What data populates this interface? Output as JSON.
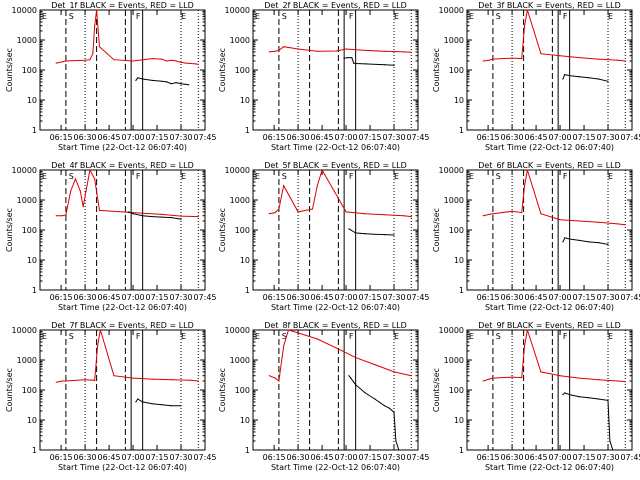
{
  "common": {
    "ylabel": "Counts/sec",
    "xlabel": "Start Time (22-Oct-12 06:07:40)",
    "xticks": [
      "06:15",
      "06:30",
      "06:45",
      "07:00",
      "07:15",
      "07:30",
      "07:45"
    ],
    "yticks": [
      "1",
      "10",
      "100",
      "1000",
      "10000"
    ],
    "marker_labels": [
      "E",
      "S",
      "F",
      "E"
    ],
    "colors": {
      "events": "#000000",
      "lld": "#dd0000",
      "axes": "#000000"
    }
  },
  "chart_data": [
    {
      "type": "line",
      "title": "Det_1f BLACK = Events, RED = LLD",
      "yscale": "log",
      "ylim": [
        1,
        10000
      ],
      "series": [
        {
          "x": [
            6.2,
            6.27,
            6.3,
            6.5,
            6.55,
            6.58,
            6.6,
            6.62,
            6.65,
            6.8,
            7.0,
            7.2,
            7.3,
            7.35,
            7.4,
            7.45,
            7.5,
            7.55,
            7.6,
            7.65,
            7.68
          ],
          "y": [
            170,
            190,
            200,
            210,
            220,
            350,
            3000,
            10000,
            600,
            220,
            200,
            240,
            230,
            200,
            210,
            200,
            180,
            170,
            165,
            160,
            155
          ]
        },
        {
          "x": [
            7.03,
            7.05,
            7.1,
            7.2,
            7.3,
            7.35,
            7.4,
            7.45,
            7.5,
            7.55,
            7.58
          ],
          "y": [
            45,
            55,
            50,
            45,
            42,
            40,
            35,
            38,
            35,
            33,
            32
          ]
        }
      ]
    },
    {
      "type": "line",
      "title": "Det_2f BLACK = Events, RED = LLD",
      "yscale": "log",
      "ylim": [
        1,
        10000
      ],
      "series": [
        {
          "x": [
            6.2,
            6.26,
            6.3,
            6.35,
            6.5,
            6.7,
            6.9,
            7.0,
            7.2,
            7.4,
            7.6,
            7.68
          ],
          "y": [
            400,
            420,
            450,
            600,
            500,
            420,
            430,
            500,
            450,
            420,
            400,
            390
          ]
        },
        {
          "x": [
            6.98,
            7.02,
            7.06,
            7.08,
            7.1,
            7.2,
            7.4,
            7.5
          ],
          "y": [
            250,
            260,
            260,
            170,
            165,
            160,
            150,
            145
          ]
        }
      ]
    },
    {
      "type": "line",
      "title": "Det_3f BLACK = Events, RED = LLD",
      "yscale": "log",
      "ylim": [
        1,
        10000
      ],
      "series": [
        {
          "x": [
            6.2,
            6.26,
            6.3,
            6.5,
            6.6,
            6.63,
            6.66,
            6.8,
            7.0,
            7.2,
            7.4,
            7.6,
            7.68
          ],
          "y": [
            200,
            210,
            230,
            250,
            240,
            3000,
            10000,
            350,
            300,
            260,
            230,
            210,
            200
          ]
        },
        {
          "x": [
            7.03,
            7.05,
            7.1,
            7.2,
            7.3,
            7.4,
            7.5
          ],
          "y": [
            50,
            70,
            65,
            60,
            55,
            50,
            42
          ]
        }
      ]
    },
    {
      "type": "line",
      "title": "Det_4f BLACK = Events, RED = LLD",
      "yscale": "log",
      "ylim": [
        1,
        10000
      ],
      "series": [
        {
          "x": [
            6.2,
            6.26,
            6.3,
            6.35,
            6.4,
            6.45,
            6.48,
            6.55,
            6.6,
            6.65,
            7.0,
            7.3,
            7.5,
            7.68
          ],
          "y": [
            300,
            300,
            320,
            2000,
            5000,
            2000,
            600,
            10000,
            5000,
            450,
            380,
            330,
            290,
            280
          ]
        },
        {
          "x": [
            6.95,
            7.0,
            7.1,
            7.2,
            7.3,
            7.4,
            7.5
          ],
          "y": [
            400,
            350,
            300,
            280,
            270,
            260,
            230
          ]
        }
      ]
    },
    {
      "type": "line",
      "title": "Det_5f BLACK = Events, RED = LLD",
      "yscale": "log",
      "ylim": [
        1,
        10000
      ],
      "series": [
        {
          "x": [
            6.2,
            6.26,
            6.3,
            6.35,
            6.5,
            6.65,
            6.7,
            6.75,
            7.0,
            7.2,
            7.4,
            7.6,
            7.68
          ],
          "y": [
            350,
            380,
            500,
            3000,
            400,
            500,
            3000,
            10000,
            400,
            350,
            320,
            300,
            280
          ]
        },
        {
          "x": [
            7.03,
            7.05,
            7.1,
            7.2,
            7.3,
            7.4,
            7.5
          ],
          "y": [
            110,
            100,
            80,
            75,
            72,
            70,
            68
          ]
        }
      ]
    },
    {
      "type": "line",
      "title": "Det_6f BLACK = Events, RED = LLD",
      "yscale": "log",
      "ylim": [
        1,
        10000
      ],
      "series": [
        {
          "x": [
            6.2,
            6.26,
            6.3,
            6.5,
            6.6,
            6.63,
            6.66,
            6.8,
            7.0,
            7.2,
            7.4,
            7.6,
            7.68
          ],
          "y": [
            300,
            330,
            350,
            420,
            380,
            3000,
            10000,
            350,
            220,
            200,
            180,
            160,
            150
          ]
        },
        {
          "x": [
            7.03,
            7.05,
            7.1,
            7.2,
            7.3,
            7.4,
            7.5
          ],
          "y": [
            40,
            55,
            50,
            45,
            40,
            38,
            33
          ]
        }
      ]
    },
    {
      "type": "line",
      "title": "Det_7f BLACK = Events, RED = LLD",
      "yscale": "log",
      "ylim": [
        1,
        10000
      ],
      "series": [
        {
          "x": [
            6.2,
            6.26,
            6.3,
            6.5,
            6.6,
            6.63,
            6.66,
            6.8,
            7.0,
            7.2,
            7.4,
            7.6,
            7.68
          ],
          "y": [
            180,
            200,
            200,
            220,
            210,
            3000,
            10000,
            300,
            250,
            230,
            220,
            210,
            200
          ]
        },
        {
          "x": [
            7.03,
            7.05,
            7.1,
            7.2,
            7.3,
            7.4,
            7.5
          ],
          "y": [
            40,
            50,
            40,
            35,
            32,
            30,
            30
          ]
        }
      ]
    },
    {
      "type": "line",
      "title": "Det_8f BLACK = Events, RED = LLD",
      "yscale": "log",
      "ylim": [
        1,
        10000
      ],
      "series": [
        {
          "x": [
            6.2,
            6.26,
            6.3,
            6.35,
            6.4,
            6.5,
            6.7,
            6.9,
            7.1,
            7.3,
            7.5,
            7.68
          ],
          "y": [
            300,
            250,
            200,
            3000,
            10000,
            8000,
            5000,
            2500,
            1200,
            700,
            400,
            300
          ]
        },
        {
          "x": [
            7.03,
            7.05,
            7.1,
            7.2,
            7.3,
            7.4,
            7.45,
            7.5,
            7.52,
            7.55
          ],
          "y": [
            300,
            250,
            150,
            80,
            50,
            30,
            25,
            18,
            2,
            1
          ]
        }
      ]
    },
    {
      "type": "line",
      "title": "Det_9f BLACK = Events, RED = LLD",
      "yscale": "log",
      "ylim": [
        1,
        10000
      ],
      "series": [
        {
          "x": [
            6.2,
            6.26,
            6.3,
            6.5,
            6.6,
            6.63,
            6.66,
            6.8,
            7.0,
            7.2,
            7.4,
            7.6,
            7.68
          ],
          "y": [
            200,
            230,
            250,
            270,
            260,
            3000,
            10000,
            400,
            300,
            250,
            220,
            200,
            190
          ]
        },
        {
          "x": [
            7.03,
            7.05,
            7.1,
            7.2,
            7.3,
            7.4,
            7.5,
            7.52,
            7.55
          ],
          "y": [
            70,
            80,
            70,
            60,
            55,
            50,
            45,
            2,
            1
          ]
        }
      ]
    }
  ]
}
